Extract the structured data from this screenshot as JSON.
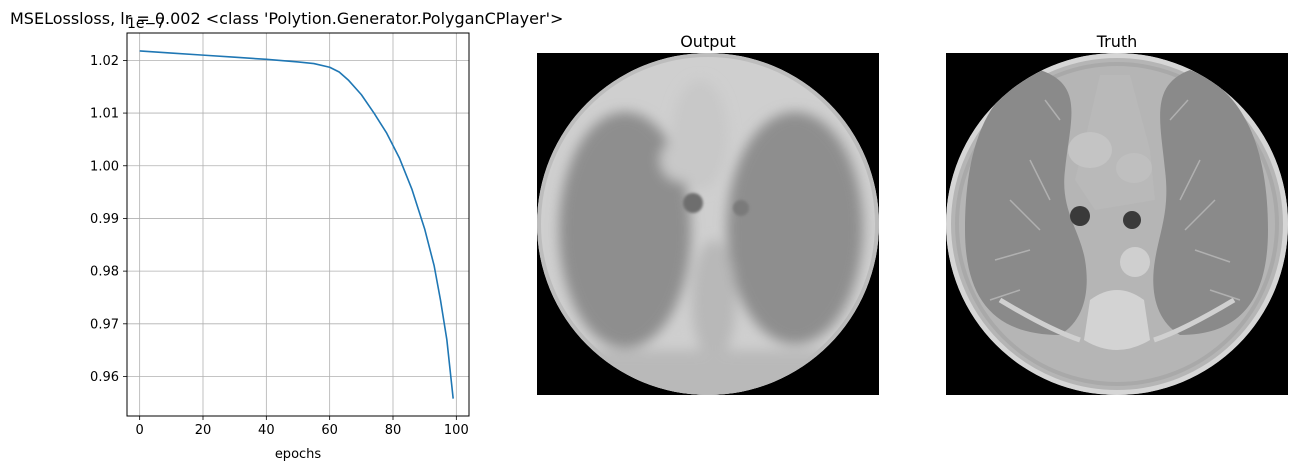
{
  "figure": {
    "suptitle": "MSELossloss, lr = 0.002 <class 'Polytion.Generator.PolyganCPlayer'>"
  },
  "chart_data": {
    "type": "line",
    "title": "",
    "xlabel": "epochs",
    "ylabel": "",
    "y_offset_label": "1e−7",
    "xlim": [
      -4,
      104
    ],
    "ylim": [
      0.9525,
      1.0252
    ],
    "xticks": [
      0,
      20,
      40,
      60,
      80,
      100
    ],
    "yticks": [
      0.96,
      0.97,
      0.98,
      0.99,
      1.0,
      1.01,
      1.02
    ],
    "ytick_labels": [
      "0.96",
      "0.97",
      "0.98",
      "0.99",
      "1.00",
      "1.01",
      "1.02"
    ],
    "grid": true,
    "series": [
      {
        "color": "#1f77b4",
        "x": [
          0,
          10,
          20,
          30,
          40,
          50,
          55,
          60,
          63,
          66,
          70,
          74,
          78,
          82,
          86,
          90,
          93,
          95,
          97,
          99
        ],
        "y": [
          1.0218,
          1.0214,
          1.021,
          1.0206,
          1.0202,
          1.0197,
          1.0194,
          1.0187,
          1.0178,
          1.0162,
          1.0135,
          1.01,
          1.0062,
          1.0015,
          0.9955,
          0.988,
          0.981,
          0.9745,
          0.967,
          0.9558
        ]
      }
    ]
  },
  "panels": {
    "output": {
      "title": "Output",
      "image": "ct-scan-output"
    },
    "truth": {
      "title": "Truth",
      "image": "ct-scan-truth"
    }
  }
}
